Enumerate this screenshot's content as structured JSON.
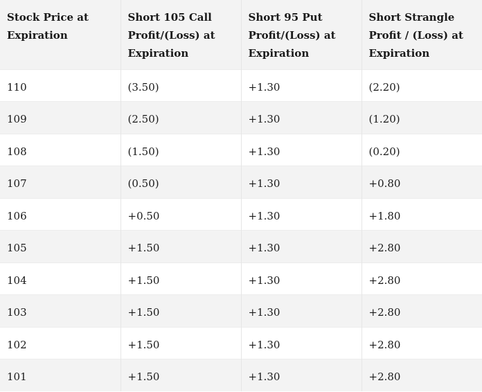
{
  "table": {
    "headers": [
      "Stock Price at Expiration",
      "Short 105 Call Profit/(Loss) at Expiration",
      "Short 95 Put Profit/(Loss) at Expiration",
      "Short Strangle Profit / (Loss) at Expiration"
    ],
    "rows": [
      [
        "110",
        "(3.50)",
        "+1.30",
        "(2.20)"
      ],
      [
        "109",
        "(2.50)",
        "+1.30",
        "(1.20)"
      ],
      [
        "108",
        "(1.50)",
        "+1.30",
        "(0.20)"
      ],
      [
        "107",
        "(0.50)",
        "+1.30",
        "+0.80"
      ],
      [
        "106",
        "+0.50",
        "+1.30",
        "+1.80"
      ],
      [
        "105",
        "+1.50",
        "+1.30",
        "+2.80"
      ],
      [
        "104",
        "+1.50",
        "+1.30",
        "+2.80"
      ],
      [
        "103",
        "+1.50",
        "+1.30",
        "+2.80"
      ],
      [
        "102",
        "+1.50",
        "+1.30",
        "+2.80"
      ],
      [
        "101",
        "+1.50",
        "+1.30",
        "+2.80"
      ]
    ]
  }
}
